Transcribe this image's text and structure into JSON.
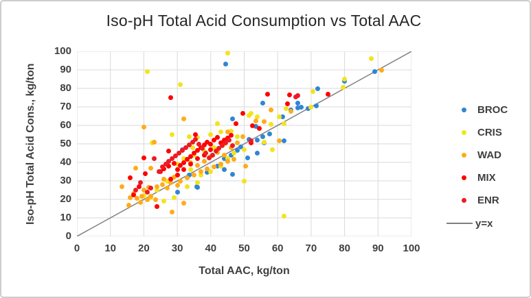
{
  "chart_data": {
    "type": "scatter",
    "title": "Iso-pH Total Acid Consumption vs Total AAC",
    "xlabel": "Total AAC, kg/ton",
    "ylabel": "Iso-pH Total Acid Cons., kg/ton",
    "xlim": [
      0,
      100
    ],
    "ylim": [
      0,
      100
    ],
    "x_ticks": [
      0,
      10,
      20,
      30,
      40,
      50,
      60,
      70,
      80,
      90,
      100
    ],
    "y_ticks": [
      0,
      10,
      20,
      30,
      40,
      50,
      60,
      70,
      80,
      90,
      100
    ],
    "grid": true,
    "gridline_color": "#d9d9d9",
    "legend_position": "right",
    "reference_line": {
      "label": "y=x",
      "from": [
        0,
        0
      ],
      "to": [
        100,
        100
      ],
      "color": "#7f7f7f"
    },
    "series": [
      {
        "name": "BROC",
        "color": "#2e86d5",
        "points": [
          [
            44.5,
            93
          ],
          [
            89,
            89
          ],
          [
            80,
            84
          ],
          [
            72,
            80
          ],
          [
            66,
            72
          ],
          [
            55.5,
            72
          ],
          [
            67,
            70
          ],
          [
            71.5,
            70.5
          ],
          [
            69,
            69
          ],
          [
            64,
            68.5
          ],
          [
            66,
            69.5
          ],
          [
            61.5,
            64.5
          ],
          [
            46.5,
            63.5
          ],
          [
            53.5,
            59.5
          ],
          [
            57.5,
            55.5
          ],
          [
            55.5,
            54
          ],
          [
            62,
            51.5
          ],
          [
            54,
            52
          ],
          [
            51.5,
            52.5
          ],
          [
            56,
            50.5
          ],
          [
            54,
            45
          ],
          [
            51,
            42.5
          ],
          [
            31.5,
            47
          ],
          [
            48,
            46.5
          ],
          [
            44,
            42
          ],
          [
            46,
            44
          ],
          [
            49,
            48.5
          ],
          [
            42,
            38
          ],
          [
            44,
            36
          ],
          [
            46.5,
            33.5
          ],
          [
            33.5,
            33
          ],
          [
            39,
            34.5
          ],
          [
            36,
            26.5
          ],
          [
            30,
            24
          ],
          [
            35.9,
            27
          ]
        ]
      },
      {
        "name": "CRIS",
        "color": "#f2e41c",
        "points": [
          [
            45,
            99
          ],
          [
            88,
            96
          ],
          [
            21,
            89
          ],
          [
            31,
            82
          ],
          [
            80,
            85
          ],
          [
            79.5,
            80.5
          ],
          [
            70.5,
            78.5
          ],
          [
            70,
            70
          ],
          [
            62.5,
            69
          ],
          [
            62,
            61
          ],
          [
            58,
            60.5
          ],
          [
            60.5,
            64.5
          ],
          [
            54,
            64.5
          ],
          [
            52,
            66.5
          ],
          [
            51.5,
            65.5
          ],
          [
            58.5,
            47
          ],
          [
            56,
            51
          ],
          [
            42,
            61
          ],
          [
            33.5,
            54
          ],
          [
            28.5,
            55
          ],
          [
            22.5,
            50.5
          ],
          [
            36,
            53.5
          ],
          [
            40,
            55
          ],
          [
            43,
            56.5
          ],
          [
            46,
            57
          ],
          [
            48,
            54
          ],
          [
            44,
            50
          ],
          [
            41,
            48
          ],
          [
            38,
            46
          ],
          [
            35,
            44
          ],
          [
            32,
            42
          ],
          [
            30,
            39
          ],
          [
            34,
            36
          ],
          [
            37,
            33
          ],
          [
            40,
            35
          ],
          [
            43,
            38
          ],
          [
            45,
            42
          ],
          [
            47,
            45
          ],
          [
            50,
            47
          ],
          [
            36,
            29
          ],
          [
            33,
            27
          ],
          [
            29,
            21
          ],
          [
            26,
            19
          ],
          [
            22,
            21
          ],
          [
            20,
            22
          ],
          [
            24,
            25
          ],
          [
            27,
            30
          ],
          [
            50,
            30
          ],
          [
            62,
            11
          ],
          [
            34.5,
            48
          ]
        ]
      },
      {
        "name": "WAD",
        "color": "#ffab1a",
        "points": [
          [
            91,
            90
          ],
          [
            60.5,
            51.5
          ],
          [
            58,
            68.5
          ],
          [
            64,
            67.5
          ],
          [
            56,
            62
          ],
          [
            53.5,
            62.5
          ],
          [
            49.5,
            54
          ],
          [
            50.5,
            38
          ],
          [
            32,
            63.5
          ],
          [
            20,
            59
          ],
          [
            45,
            56.5
          ],
          [
            23,
            51
          ],
          [
            17.5,
            37
          ],
          [
            22,
            37
          ],
          [
            13.5,
            27
          ],
          [
            15.5,
            17
          ],
          [
            19,
            18.5
          ],
          [
            28.5,
            13
          ],
          [
            32,
            18
          ],
          [
            16,
            21
          ],
          [
            17,
            23
          ],
          [
            18,
            20.5
          ],
          [
            19.5,
            21.5
          ],
          [
            21,
            20
          ],
          [
            22,
            21.5
          ],
          [
            23.5,
            20
          ],
          [
            20,
            25
          ],
          [
            21.5,
            26.5
          ],
          [
            24,
            27
          ],
          [
            25.5,
            28
          ],
          [
            27,
            26
          ],
          [
            28,
            29
          ],
          [
            30,
            27.5
          ],
          [
            26,
            31
          ],
          [
            29,
            32
          ],
          [
            31,
            30
          ],
          [
            33,
            31.5
          ],
          [
            35,
            33
          ],
          [
            37,
            35
          ],
          [
            39,
            36.5
          ],
          [
            41,
            37.5
          ],
          [
            43,
            39
          ],
          [
            45,
            40.5
          ],
          [
            47,
            41.5
          ],
          [
            44,
            44
          ],
          [
            42,
            45.5
          ],
          [
            40,
            43
          ],
          [
            38,
            40.5
          ],
          [
            36,
            38.5
          ],
          [
            34,
            40
          ],
          [
            46,
            48
          ],
          [
            48,
            50.5
          ]
        ]
      },
      {
        "name": "MIX",
        "color": "#fe0000",
        "points": [
          [
            28,
            75
          ],
          [
            57,
            77
          ],
          [
            75,
            77
          ],
          [
            63.5,
            76.5
          ],
          [
            49.5,
            66.5
          ],
          [
            47.5,
            61
          ],
          [
            54.5,
            58.5
          ],
          [
            52.5,
            60
          ],
          [
            52,
            50.5
          ],
          [
            35.5,
            55
          ],
          [
            27.5,
            46
          ],
          [
            20,
            42.5
          ],
          [
            20.5,
            34
          ],
          [
            16,
            31.5
          ],
          [
            18.5,
            27
          ],
          [
            17,
            22.5
          ],
          [
            24,
            16
          ],
          [
            25,
            35
          ],
          [
            26,
            36.5
          ],
          [
            27.5,
            38
          ],
          [
            29,
            39.5
          ],
          [
            30,
            36
          ],
          [
            31,
            38.5
          ],
          [
            32,
            40
          ],
          [
            33,
            41.5
          ],
          [
            34,
            43
          ],
          [
            35,
            45
          ],
          [
            36,
            46.5
          ],
          [
            37,
            48
          ],
          [
            38,
            49.5
          ],
          [
            39,
            51
          ],
          [
            40,
            50
          ],
          [
            41,
            52
          ],
          [
            42,
            53.5
          ],
          [
            43,
            50.5
          ],
          [
            44,
            52
          ],
          [
            45,
            53
          ],
          [
            46,
            54.5
          ],
          [
            40,
            47
          ],
          [
            38,
            44
          ],
          [
            36,
            42
          ],
          [
            34,
            39
          ],
          [
            32,
            36
          ],
          [
            30,
            33
          ],
          [
            28,
            31
          ],
          [
            63,
            71.5
          ]
        ]
      },
      {
        "name": "ENR",
        "color": "#ed1b24",
        "points": [
          [
            65.5,
            75.5
          ],
          [
            66,
            76
          ],
          [
            52,
            51.5
          ],
          [
            23,
            42
          ],
          [
            24.5,
            35
          ],
          [
            25.5,
            37.5
          ],
          [
            26.5,
            39
          ],
          [
            27.5,
            40.5
          ],
          [
            28.5,
            42
          ],
          [
            29.5,
            43.5
          ],
          [
            30.5,
            45
          ],
          [
            31.5,
            46.5
          ],
          [
            32.5,
            48
          ],
          [
            33.5,
            49.5
          ],
          [
            34.5,
            51
          ],
          [
            35.5,
            52.5
          ],
          [
            36.5,
            50
          ],
          [
            37.5,
            47.5
          ],
          [
            38.5,
            45
          ],
          [
            39.5,
            42.5
          ],
          [
            40.5,
            44
          ],
          [
            41.5,
            46
          ],
          [
            42.5,
            47.5
          ],
          [
            43.5,
            49
          ],
          [
            44.5,
            50.5
          ],
          [
            45.5,
            52
          ],
          [
            46.5,
            49
          ],
          [
            22,
            26
          ],
          [
            21,
            24
          ],
          [
            19,
            29
          ],
          [
            17.5,
            25
          ]
        ]
      }
    ]
  }
}
